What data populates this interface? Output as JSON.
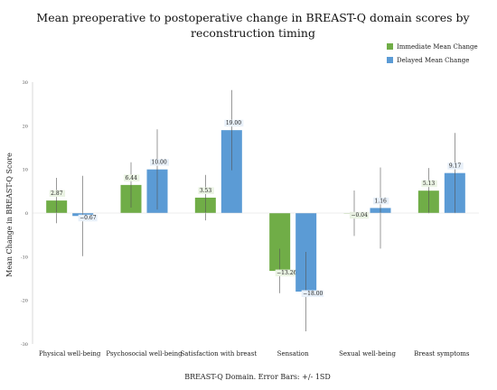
{
  "chart_data": {
    "type": "bar",
    "title_lines": [
      "Mean preoperative to postoperative change in BREAST-Q domain scores by",
      "reconstruction timing"
    ],
    "xlabel": "BREAST-Q Domain. Error Bars: +/- 1SD",
    "ylabel": "Mean Change in BREAST-Q Score",
    "ylim": [
      -30,
      30
    ],
    "yticks": [
      30,
      20,
      10,
      0,
      -10,
      -20,
      -30
    ],
    "categories": [
      "Physical well-being",
      "Psychosocial well-being",
      "Satisfaction with breast",
      "Sensation",
      "Sexual well-being",
      "Breast symptoms"
    ],
    "series": [
      {
        "name": "Immediate Mean Change",
        "color": "#70ad47",
        "values": [
          2.87,
          6.44,
          3.53,
          -13.26,
          -0.04,
          5.13
        ],
        "labels": [
          "2.87",
          "6.44",
          "3.53",
          "−13.26",
          "−0.04",
          "5.13"
        ],
        "error_sd": [
          5.2,
          5.2,
          5.2,
          5.1,
          5.2,
          5.2
        ]
      },
      {
        "name": "Delayed Mean Change",
        "color": "#5b9bd5",
        "values": [
          -0.67,
          10.0,
          19.0,
          -18.0,
          1.16,
          9.17
        ],
        "labels": [
          "−0.67",
          "10.00",
          "19.00",
          "−18.00",
          "1.16",
          "9.17"
        ],
        "error_sd": [
          9.2,
          9.2,
          9.2,
          9.1,
          9.3,
          9.2
        ]
      }
    ],
    "legend_position": "top-right",
    "grid": false
  }
}
